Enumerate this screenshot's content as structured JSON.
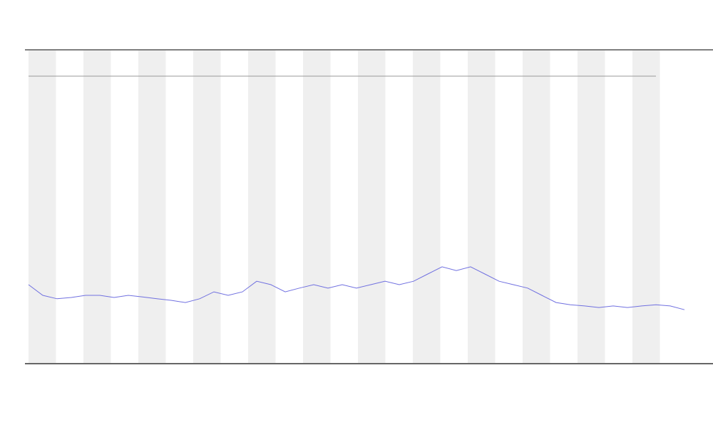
{
  "chart_data": {
    "type": "line",
    "series": [
      {
        "color": "#7070e0",
        "values": [
          25,
          21.6,
          20.5,
          20.9,
          21.6,
          21.6,
          20.9,
          21.6,
          21.1,
          20.5,
          20,
          19.3,
          20.5,
          22.7,
          21.6,
          22.7,
          26.1,
          25,
          22.7,
          23.9,
          25,
          23.9,
          25,
          23.9,
          25,
          26.1,
          25,
          26.1,
          28.4,
          30.7,
          29.5,
          30.7,
          28.4,
          26.1,
          25,
          23.9,
          21.6,
          19.3,
          18.6,
          18.2,
          17.7,
          18.2,
          17.7,
          18.2,
          18.6,
          18.2,
          17
        ]
      }
    ],
    "ylim": [
      0,
      100
    ]
  }
}
